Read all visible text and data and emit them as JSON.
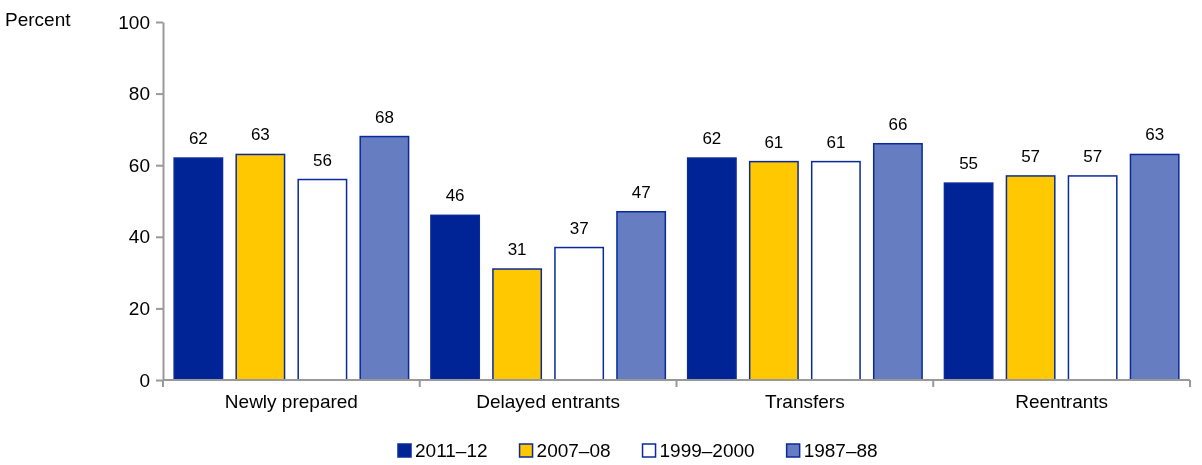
{
  "chart_data": {
    "type": "bar",
    "ylabel": "Percent",
    "categories": [
      "Newly prepared",
      "Delayed entrants",
      "Transfers",
      "Reentrants"
    ],
    "series": [
      {
        "name": "2011–12",
        "color": "#002395",
        "values": [
          62,
          46,
          62,
          55
        ]
      },
      {
        "name": "2007–08",
        "color": "#ffc800",
        "values": [
          63,
          31,
          61,
          57
        ]
      },
      {
        "name": "1999–2000",
        "color": "#ffffff",
        "values": [
          56,
          37,
          61,
          57
        ]
      },
      {
        "name": "1987–88",
        "color": "#667dc1",
        "values": [
          68,
          47,
          66,
          63
        ]
      }
    ],
    "ylim": [
      0,
      100
    ],
    "yticks": [
      0,
      20,
      40,
      60,
      80,
      100
    ],
    "grid": false,
    "legend": "bottom",
    "data_labels": true
  }
}
